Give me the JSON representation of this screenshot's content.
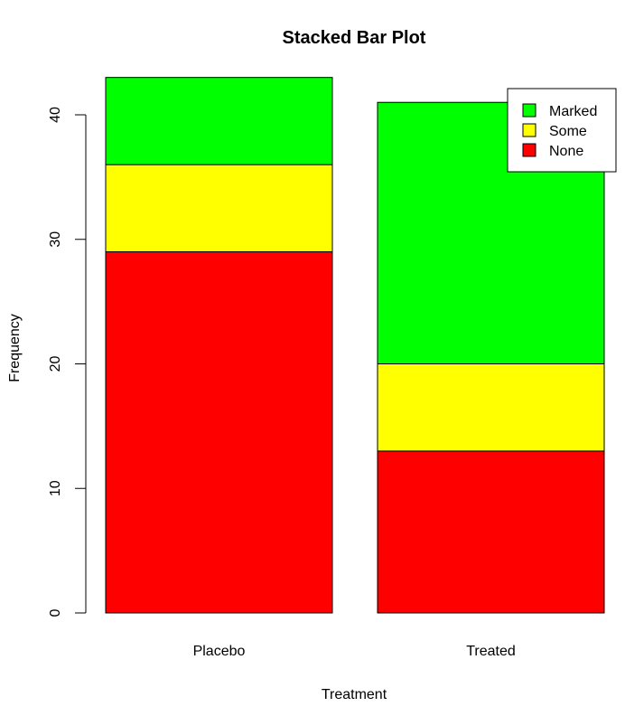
{
  "chart_data": {
    "type": "bar",
    "stacked": true,
    "title": "Stacked Bar Plot",
    "xlabel": "Treatment",
    "ylabel": "Frequency",
    "categories": [
      "Placebo",
      "Treated"
    ],
    "series": [
      {
        "name": "None",
        "values": [
          29,
          13
        ],
        "color": "#ff0000"
      },
      {
        "name": "Some",
        "values": [
          7,
          7
        ],
        "color": "#ffff00"
      },
      {
        "name": "Marked",
        "values": [
          7,
          21
        ],
        "color": "#00ff00"
      }
    ],
    "ylim": [
      0,
      40
    ],
    "yticks": [
      "0",
      "10",
      "20",
      "30",
      "40"
    ],
    "legend": {
      "position": "top-right",
      "entries": [
        "Marked",
        "Some",
        "None"
      ]
    },
    "grid": false
  }
}
